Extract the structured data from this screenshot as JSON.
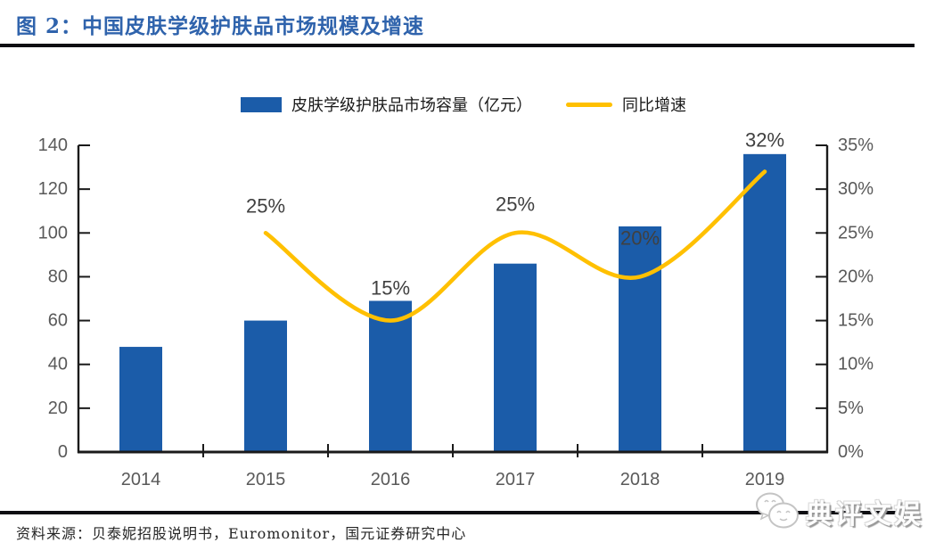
{
  "header": {
    "title": "图 2：中国皮肤学级护肤品市场规模及增速"
  },
  "legend": {
    "bar_label": "皮肤学级护肤品市场容量（亿元）",
    "line_label": "同比增速"
  },
  "chart_data": {
    "type": "bar+line",
    "categories": [
      "2014",
      "2015",
      "2016",
      "2017",
      "2018",
      "2019"
    ],
    "series": [
      {
        "name": "皮肤学级护肤品市场容量（亿元）",
        "type": "bar",
        "axis": "left",
        "values": [
          48,
          60,
          69,
          86,
          103,
          136
        ]
      },
      {
        "name": "同比增速",
        "type": "line",
        "axis": "right",
        "values": [
          null,
          25,
          15,
          25,
          20,
          32
        ],
        "labels": [
          "",
          "25%",
          "15%",
          "25%",
          "20%",
          "32%"
        ]
      }
    ],
    "left_axis": {
      "min": 0,
      "max": 140,
      "step": 20,
      "ticks": [
        "0",
        "20",
        "40",
        "60",
        "80",
        "100",
        "120",
        "140"
      ]
    },
    "right_axis": {
      "min": 0,
      "max": 35,
      "step": 5,
      "ticks": [
        "0%",
        "5%",
        "10%",
        "15%",
        "20%",
        "25%",
        "30%",
        "35%"
      ]
    },
    "grid": "off",
    "legend_position": "top-center",
    "colors": {
      "bar": "#1B5CA9",
      "line": "#FFC000",
      "axis": "#1a1a1a",
      "tick_label": "#595959",
      "data_label": "#404040"
    }
  },
  "palette": {
    "title_text": "#2F63AC",
    "rule": "#0d0d12"
  },
  "footer": {
    "source": "资料来源：贝泰妮招股说明书，Euromonitor，国元证券研究中心",
    "watermark": "典评文娱"
  }
}
